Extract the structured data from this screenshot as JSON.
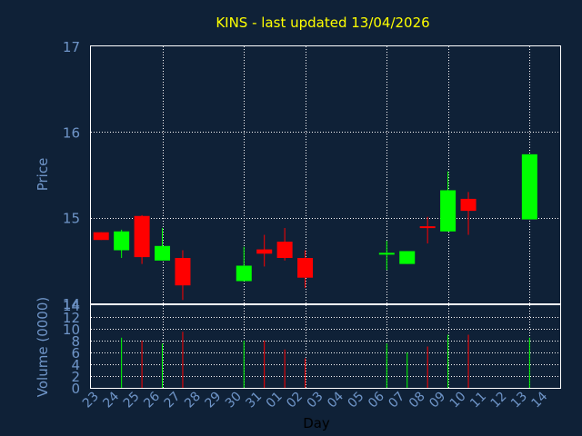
{
  "chart_data": {
    "type": "candlestick",
    "title": "KINS - last updated 13/04/2026",
    "xlabel": "Day",
    "price_panel": {
      "ylabel": "Price",
      "ylim": [
        14,
        17
      ],
      "yticks": [
        "14",
        "15",
        "16",
        "17"
      ],
      "grid": true
    },
    "volume_panel": {
      "ylabel": "Volume (0000)",
      "ylim": [
        0,
        14
      ],
      "yticks": [
        "0",
        "2",
        "4",
        "6",
        "8",
        "10",
        "12",
        "14"
      ],
      "grid": true
    },
    "x_tick_labels": [
      "23",
      "24",
      "25",
      "26",
      "27",
      "28",
      "29",
      "30",
      "31",
      "01",
      "02",
      "03",
      "04",
      "05",
      "06",
      "07",
      "08",
      "09",
      "10",
      "11",
      "12",
      "13",
      "14"
    ],
    "candles": [
      {
        "day": "23",
        "open": 14.83,
        "close": 14.74,
        "high": 14.83,
        "low": 14.74,
        "volume": 0
      },
      {
        "day": "24",
        "open": 14.62,
        "close": 14.84,
        "high": 14.86,
        "low": 14.53,
        "volume": 8.5
      },
      {
        "day": "25",
        "open": 15.02,
        "close": 14.54,
        "high": 15.03,
        "low": 14.46,
        "volume": 8.0
      },
      {
        "day": "26",
        "open": 14.5,
        "close": 14.67,
        "high": 14.88,
        "low": 14.5,
        "volume": 7.5
      },
      {
        "day": "27",
        "open": 14.53,
        "close": 14.21,
        "high": 14.62,
        "low": 14.04,
        "volume": 9.5
      },
      {
        "day": "30",
        "open": 14.26,
        "close": 14.44,
        "high": 14.66,
        "low": 14.26,
        "volume": 8.0
      },
      {
        "day": "31",
        "open": 14.63,
        "close": 14.58,
        "high": 14.8,
        "low": 14.43,
        "volume": 8.0
      },
      {
        "day": "01",
        "open": 14.72,
        "close": 14.53,
        "high": 14.88,
        "low": 14.5,
        "volume": 6.5
      },
      {
        "day": "02",
        "open": 14.53,
        "close": 14.3,
        "high": 14.62,
        "low": 14.18,
        "volume": 5.0
      },
      {
        "day": "06",
        "open": 14.57,
        "close": 14.59,
        "high": 14.73,
        "low": 14.39,
        "volume": 7.5
      },
      {
        "day": "07",
        "open": 14.46,
        "close": 14.61,
        "high": 14.61,
        "low": 14.46,
        "volume": 6.0
      },
      {
        "day": "08",
        "open": 14.9,
        "close": 14.88,
        "high": 15.01,
        "low": 14.7,
        "volume": 7.0
      },
      {
        "day": "09",
        "open": 14.84,
        "close": 15.32,
        "high": 15.54,
        "low": 14.84,
        "volume": 9.0
      },
      {
        "day": "10",
        "open": 15.22,
        "close": 15.08,
        "high": 15.3,
        "low": 14.8,
        "volume": 9.0
      },
      {
        "day": "13",
        "open": 14.98,
        "close": 15.74,
        "high": 15.74,
        "low": 14.98,
        "volume": 8.5
      }
    ],
    "colors": {
      "up": "#00ff00",
      "down": "#ff0000",
      "background": "#0f2137",
      "grid": "#ffffff",
      "axis_text": "#6f95c8",
      "title": "#ffff00"
    }
  }
}
